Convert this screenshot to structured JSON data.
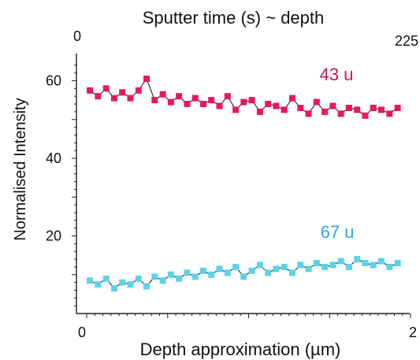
{
  "chart_data": {
    "type": "scatter",
    "title": "Sputter time (s) ~ depth",
    "xlabel": "Depth approximation (µm)",
    "ylabel": "Normalised Intensity",
    "xlim": [
      0,
      2
    ],
    "ylim": [
      0,
      67
    ],
    "x_ticks": [
      {
        "value": 0,
        "label": "0"
      },
      {
        "value": 2,
        "label": "2"
      }
    ],
    "y_ticks": [
      {
        "value": 20,
        "label": "20"
      },
      {
        "value": 40,
        "label": "40"
      },
      {
        "value": 60,
        "label": "60"
      }
    ],
    "top_axis": {
      "min": 0,
      "max": 225,
      "ticks": [
        {
          "value": 0,
          "label": "0"
        },
        {
          "value": 225,
          "label": "225"
        }
      ]
    },
    "grid": false,
    "legend": "none",
    "series": [
      {
        "name": "43 u",
        "color": "#e8175d",
        "x": [
          0.02,
          0.07,
          0.12,
          0.17,
          0.22,
          0.27,
          0.32,
          0.37,
          0.42,
          0.47,
          0.52,
          0.57,
          0.62,
          0.67,
          0.72,
          0.77,
          0.82,
          0.87,
          0.92,
          0.97,
          1.02,
          1.07,
          1.12,
          1.17,
          1.22,
          1.27,
          1.32,
          1.37,
          1.42,
          1.47,
          1.52,
          1.57,
          1.62,
          1.67,
          1.72,
          1.77,
          1.82,
          1.87,
          1.92
        ],
        "y": [
          57.5,
          56.0,
          58.0,
          55.5,
          57.0,
          55.5,
          57.5,
          60.5,
          55.0,
          56.5,
          54.5,
          56.0,
          54.0,
          55.5,
          54.0,
          55.0,
          53.5,
          56.0,
          52.5,
          54.5,
          55.0,
          52.0,
          54.0,
          53.5,
          52.5,
          55.5,
          53.0,
          51.5,
          54.5,
          52.0,
          53.5,
          51.5,
          53.0,
          52.5,
          51.0,
          53.0,
          52.5,
          51.5,
          53.0
        ]
      },
      {
        "name": "67 u",
        "color": "#5bd3e8",
        "x": [
          0.02,
          0.07,
          0.12,
          0.17,
          0.22,
          0.27,
          0.32,
          0.37,
          0.42,
          0.47,
          0.52,
          0.57,
          0.62,
          0.67,
          0.72,
          0.77,
          0.82,
          0.87,
          0.92,
          0.97,
          1.02,
          1.07,
          1.12,
          1.17,
          1.22,
          1.27,
          1.32,
          1.37,
          1.42,
          1.47,
          1.52,
          1.57,
          1.62,
          1.67,
          1.72,
          1.77,
          1.82,
          1.87,
          1.92
        ],
        "y": [
          8.5,
          7.5,
          9.0,
          6.5,
          8.0,
          7.5,
          9.0,
          7.0,
          9.5,
          8.5,
          10.0,
          9.0,
          10.5,
          9.5,
          11.0,
          10.0,
          11.5,
          10.5,
          12.0,
          9.5,
          11.0,
          12.5,
          10.5,
          11.5,
          12.0,
          10.5,
          12.5,
          11.5,
          13.0,
          12.0,
          12.5,
          13.5,
          12.0,
          14.0,
          13.0,
          12.5,
          13.5,
          12.0,
          13.0
        ]
      }
    ]
  }
}
